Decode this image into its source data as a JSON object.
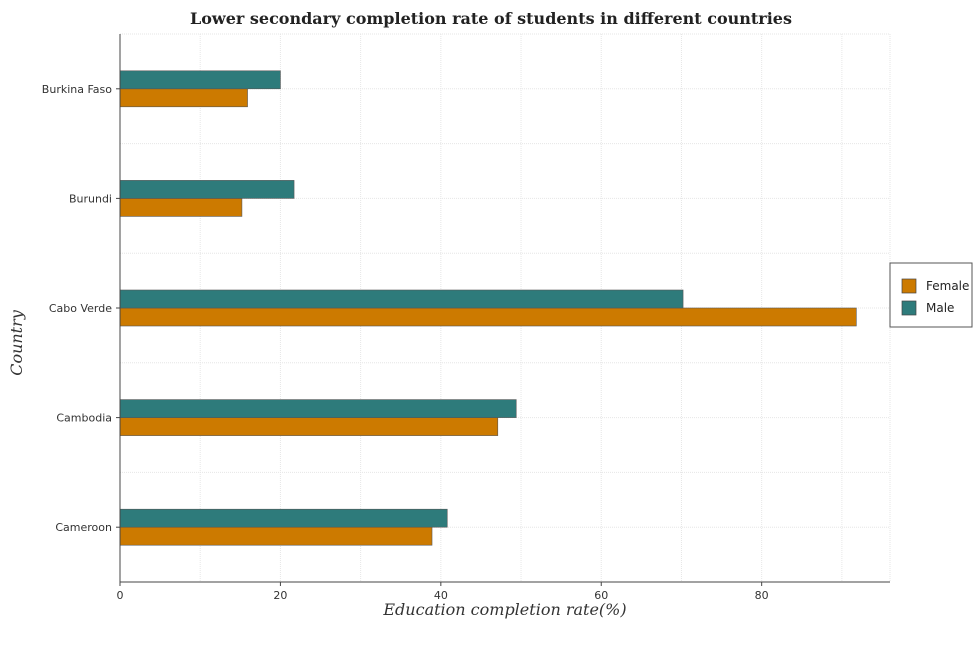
{
  "chart_data": {
    "type": "bar",
    "orientation": "horizontal",
    "title": "Lower secondary completion rate of students in different countries",
    "xlabel": "Education completion rate(%)",
    "ylabel": "Country",
    "categories": [
      "Burkina Faso",
      "Burundi",
      "Cabo Verde",
      "Cambodia",
      "Cameroon"
    ],
    "series": [
      {
        "name": "Female",
        "color": "#cc7a00",
        "values": [
          15.9,
          15.2,
          91.8,
          47.1,
          38.9
        ]
      },
      {
        "name": "Male",
        "color": "#2e7b7b",
        "values": [
          20.0,
          21.7,
          70.2,
          49.4,
          40.8
        ]
      }
    ],
    "xlim": [
      0,
      96
    ],
    "xticks": [
      0,
      20,
      40,
      60,
      80
    ],
    "grid": true,
    "legend_position": "right"
  }
}
